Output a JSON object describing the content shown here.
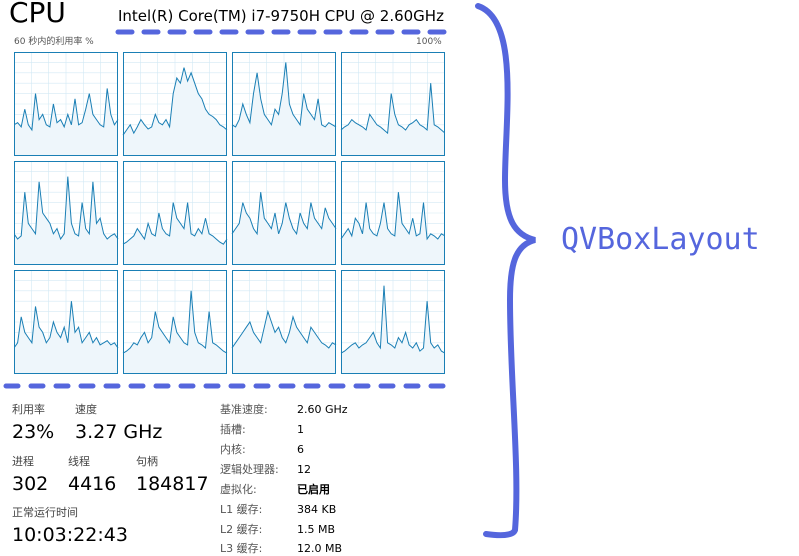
{
  "header": {
    "title": "CPU",
    "model": "Intel(R) Core(TM) i7-9750H CPU @ 2.60GHz",
    "util_label": "60 秒内的利用率 %",
    "util_max": "100%"
  },
  "colors": {
    "graph_line": "#1a7fb5",
    "graph_fill": "#eef6fb",
    "graph_border": "#1a7fb5",
    "graph_grid": "#d3e9f5",
    "annotation": "#5566dd"
  },
  "cores": [
    [
      30,
      32,
      28,
      45,
      30,
      25,
      60,
      35,
      40,
      30,
      28,
      50,
      32,
      35,
      28,
      40,
      30,
      55,
      30,
      32,
      45,
      60,
      40,
      35,
      30,
      28,
      65,
      40,
      30,
      35
    ],
    [
      20,
      25,
      30,
      22,
      28,
      35,
      30,
      26,
      28,
      40,
      32,
      30,
      35,
      28,
      60,
      75,
      70,
      85,
      72,
      80,
      70,
      60,
      55,
      45,
      40,
      38,
      35,
      30,
      28,
      25
    ],
    [
      30,
      28,
      35,
      50,
      40,
      32,
      60,
      80,
      55,
      40,
      35,
      30,
      45,
      40,
      60,
      90,
      50,
      40,
      35,
      30,
      60,
      45,
      40,
      35,
      55,
      30,
      28,
      32,
      30,
      28
    ],
    [
      25,
      28,
      30,
      35,
      32,
      30,
      28,
      25,
      40,
      35,
      30,
      28,
      25,
      22,
      60,
      40,
      30,
      28,
      25,
      30,
      32,
      35,
      30,
      28,
      25,
      70,
      30,
      28,
      25,
      22
    ],
    [
      30,
      25,
      28,
      70,
      40,
      35,
      30,
      80,
      50,
      45,
      40,
      30,
      35,
      25,
      30,
      85,
      40,
      30,
      28,
      60,
      35,
      30,
      80,
      40,
      45,
      30,
      25,
      28,
      30,
      25
    ],
    [
      20,
      22,
      25,
      28,
      35,
      30,
      25,
      40,
      30,
      28,
      50,
      35,
      30,
      28,
      60,
      45,
      40,
      35,
      60,
      30,
      28,
      35,
      30,
      45,
      30,
      28,
      25,
      22,
      20,
      25
    ],
    [
      30,
      35,
      40,
      60,
      50,
      45,
      35,
      30,
      70,
      45,
      40,
      35,
      50,
      30,
      40,
      60,
      45,
      35,
      30,
      50,
      40,
      35,
      60,
      45,
      40,
      35,
      55,
      45,
      40,
      35
    ],
    [
      25,
      30,
      35,
      28,
      45,
      40,
      30,
      60,
      35,
      30,
      28,
      40,
      60,
      35,
      30,
      28,
      70,
      40,
      35,
      30,
      45,
      28,
      30,
      60,
      25,
      30,
      28,
      25,
      30,
      28
    ],
    [
      25,
      30,
      55,
      40,
      35,
      30,
      65,
      45,
      40,
      30,
      35,
      50,
      40,
      35,
      45,
      30,
      70,
      40,
      45,
      30,
      35,
      40,
      30,
      35,
      28,
      30,
      32,
      28,
      30,
      25
    ],
    [
      20,
      22,
      25,
      30,
      28,
      35,
      40,
      30,
      35,
      60,
      45,
      40,
      35,
      30,
      55,
      40,
      35,
      30,
      28,
      80,
      40,
      30,
      28,
      25,
      60,
      30,
      28,
      25,
      22,
      20
    ],
    [
      25,
      30,
      35,
      40,
      45,
      50,
      40,
      35,
      30,
      45,
      60,
      50,
      40,
      45,
      35,
      30,
      40,
      55,
      45,
      40,
      35,
      30,
      45,
      40,
      35,
      30,
      28,
      25,
      30,
      28
    ],
    [
      20,
      22,
      25,
      28,
      30,
      25,
      28,
      30,
      35,
      40,
      30,
      25,
      85,
      30,
      28,
      25,
      35,
      30,
      40,
      28,
      25,
      30,
      22,
      25,
      70,
      30,
      25,
      28,
      22,
      20
    ]
  ],
  "stats": {
    "utilization": {
      "label": "利用率",
      "value": "23%"
    },
    "speed": {
      "label": "速度",
      "value": "3.27 GHz"
    },
    "processes": {
      "label": "进程",
      "value": "302"
    },
    "threads": {
      "label": "线程",
      "value": "4416"
    },
    "handles": {
      "label": "句柄",
      "value": "184817"
    },
    "uptime": {
      "label": "正常运行时间",
      "value": "10:03:22:43"
    }
  },
  "details": [
    {
      "key": "基准速度:",
      "value": "2.60 GHz"
    },
    {
      "key": "插槽:",
      "value": "1"
    },
    {
      "key": "内核:",
      "value": "6"
    },
    {
      "key": "逻辑处理器:",
      "value": "12"
    },
    {
      "key": "虚拟化:",
      "value": "已启用"
    },
    {
      "key": "L1 缓存:",
      "value": "384 KB"
    },
    {
      "key": "L2 缓存:",
      "value": "1.5 MB"
    },
    {
      "key": "L3 缓存:",
      "value": "12.0 MB"
    }
  ],
  "annotation": {
    "label": "QVBoxLayout"
  }
}
